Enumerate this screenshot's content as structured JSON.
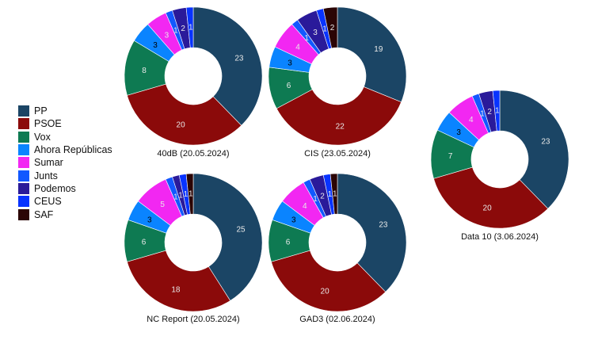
{
  "chart_data": [
    {
      "type": "pie",
      "donut": true,
      "title": "40dB (20.05.2024)",
      "categories": [
        "PP",
        "PSOE",
        "Vox",
        "Ahora Repúblicas",
        "Sumar",
        "Junts",
        "Podemos",
        "CEUS",
        "SAF"
      ],
      "values": [
        23,
        20,
        8,
        3,
        3,
        1,
        2,
        1,
        0
      ]
    },
    {
      "type": "pie",
      "donut": true,
      "title": "CIS (23.05.2024)",
      "categories": [
        "PP",
        "PSOE",
        "Vox",
        "Ahora Repúblicas",
        "Sumar",
        "Junts",
        "Podemos",
        "CEUS",
        "SAF"
      ],
      "values": [
        19,
        22,
        6,
        3,
        4,
        1,
        3,
        1,
        2
      ]
    },
    {
      "type": "pie",
      "donut": true,
      "title": "NC Report (20.05.2024)",
      "categories": [
        "PP",
        "PSOE",
        "Vox",
        "Ahora Repúblicas",
        "Sumar",
        "Junts",
        "Podemos",
        "CEUS",
        "SAF"
      ],
      "values": [
        25,
        18,
        6,
        3,
        5,
        1,
        1,
        1,
        1
      ]
    },
    {
      "type": "pie",
      "donut": true,
      "title": "GAD3 (02.06.2024)",
      "categories": [
        "PP",
        "PSOE",
        "Vox",
        "Ahora Repúblicas",
        "Sumar",
        "Junts",
        "Podemos",
        "CEUS",
        "SAF"
      ],
      "values": [
        23,
        20,
        6,
        3,
        4,
        1,
        2,
        1,
        1
      ]
    },
    {
      "type": "pie",
      "donut": true,
      "title": "Data 10 (3.06.2024)",
      "categories": [
        "PP",
        "PSOE",
        "Vox",
        "Ahora Repúblicas",
        "Sumar",
        "Junts",
        "Podemos",
        "CEUS",
        "SAF"
      ],
      "values": [
        23,
        20,
        7,
        3,
        4,
        1,
        2,
        1,
        0
      ]
    }
  ],
  "legend": {
    "placement": "left",
    "items": [
      "PP",
      "PSOE",
      "Vox",
      "Ahora Repúblicas",
      "Sumar",
      "Junts",
      "Podemos",
      "CEUS",
      "SAF"
    ]
  },
  "colors": [
    "#1b4565",
    "#8b0a0a",
    "#0e7a52",
    "#0a84ff",
    "#f227f2",
    "#1258ff",
    "#2a1a9a",
    "#0833ff",
    "#2b0505"
  ]
}
